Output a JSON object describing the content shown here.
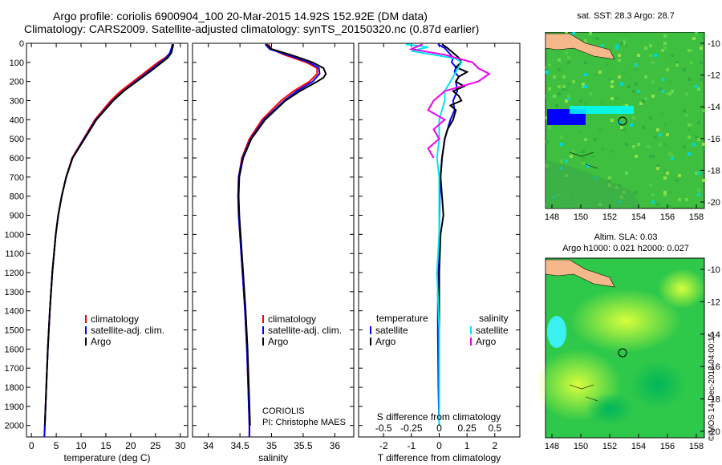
{
  "header": {
    "line1": "Argo profile: coriolis 6900904_100 20-Mar-2015 14.92S 152.92E (DM data)",
    "line2": "Climatology: CARS2009. Satellite-adjusted climatology: synTS_20150320.nc (0.87d earlier)"
  },
  "colors": {
    "climatology": "#ff0000",
    "satellite": "#0000ff",
    "argo": "#000000",
    "sat_salinity": "#00e5ee",
    "argo_salinity": "#ee00ee"
  },
  "chart_data": [
    {
      "type": "line",
      "id": "temperature",
      "xlabel": "temperature (deg C)",
      "ylabel": "",
      "xlim": [
        -1,
        31.5
      ],
      "ylim": [
        2060,
        0
      ],
      "xticks": [
        0,
        5,
        10,
        15,
        20,
        25,
        30
      ],
      "xtick_labels": [
        "0",
        "5",
        "10",
        "15",
        "20",
        "25",
        "30"
      ],
      "yticks": [
        0,
        100,
        200,
        300,
        400,
        500,
        600,
        700,
        800,
        900,
        1000,
        1100,
        1200,
        1300,
        1400,
        1500,
        1600,
        1700,
        1800,
        1900,
        2000
      ],
      "ytick_labels": [
        "0",
        "100",
        "200",
        "300",
        "400",
        "500",
        "600",
        "700",
        "800",
        "900",
        "1000",
        "1100",
        "1200",
        "1300",
        "1400",
        "1500",
        "1600",
        "1700",
        "1800",
        "1900",
        "2000"
      ],
      "legend": [
        "climatology",
        "satellite-adj. clim.",
        "Argo"
      ],
      "series": [
        {
          "name": "climatology",
          "color": "#ff0000",
          "depth": [
            5,
            20,
            50,
            75,
            100,
            150,
            200,
            250,
            300,
            400,
            500,
            600,
            700,
            800,
            900,
            1000,
            1200,
            1400,
            1600,
            1800,
            2000,
            2060
          ],
          "values": [
            28.5,
            28.4,
            28.0,
            27.0,
            25.5,
            23.0,
            20.5,
            18.0,
            16.0,
            12.8,
            10.5,
            8.2,
            7.0,
            6.1,
            5.4,
            4.9,
            4.2,
            3.7,
            3.3,
            3.0,
            2.7,
            2.6
          ]
        },
        {
          "name": "satellite-adj. clim.",
          "color": "#0000ff",
          "depth": [
            5,
            20,
            50,
            75,
            100,
            150,
            200,
            250,
            300,
            400,
            500,
            600,
            700,
            800,
            900,
            1000,
            1200,
            1400,
            1600,
            1800,
            2000,
            2060
          ],
          "values": [
            28.4,
            28.3,
            27.9,
            27.2,
            26.0,
            23.5,
            21.0,
            18.5,
            16.4,
            13.0,
            10.6,
            8.3,
            7.0,
            6.1,
            5.4,
            4.9,
            4.2,
            3.7,
            3.3,
            3.0,
            2.7,
            2.6
          ]
        },
        {
          "name": "Argo",
          "color": "#000000",
          "depth": [
            5,
            20,
            50,
            75,
            100,
            150,
            200,
            250,
            300,
            400,
            500,
            600,
            700,
            800,
            900,
            1000,
            1200,
            1400,
            1600,
            1800,
            2000
          ],
          "values": [
            28.6,
            28.5,
            28.2,
            27.5,
            26.3,
            23.8,
            21.2,
            18.6,
            16.5,
            13.1,
            10.7,
            8.3,
            7.0,
            6.1,
            5.4,
            4.9,
            4.2,
            3.7,
            3.3,
            3.0,
            2.7
          ]
        }
      ]
    },
    {
      "type": "line",
      "id": "salinity",
      "xlabel": "salinity",
      "xlim": [
        33.75,
        36.3
      ],
      "ylim": [
        2060,
        0
      ],
      "xticks": [
        34,
        34.5,
        35,
        35.5,
        36
      ],
      "xtick_labels": [
        "34",
        "34.5",
        "35",
        "35.5",
        "36"
      ],
      "legend": [
        "climatology",
        "satellite-adj. clim.",
        "Argo"
      ],
      "annotations": [
        "CORIOLIS",
        "PI: Christophe MAES"
      ],
      "series": [
        {
          "name": "climatology",
          "color": "#ff0000",
          "depth": [
            5,
            30,
            60,
            100,
            130,
            160,
            200,
            250,
            300,
            400,
            500,
            600,
            700,
            800,
            900,
            1000,
            1200,
            1400,
            1600,
            1800,
            2000,
            2060
          ],
          "values": [
            34.95,
            35.0,
            35.2,
            35.55,
            35.72,
            35.72,
            35.6,
            35.35,
            35.15,
            34.85,
            34.65,
            34.53,
            34.48,
            34.47,
            34.48,
            34.5,
            34.54,
            34.58,
            34.61,
            34.63,
            34.65,
            34.65
          ]
        },
        {
          "name": "satellite-adj. clim.",
          "color": "#0000ff",
          "depth": [
            5,
            30,
            60,
            100,
            130,
            160,
            200,
            250,
            300,
            400,
            500,
            600,
            700,
            800,
            900,
            1000,
            1200,
            1400,
            1600,
            1800,
            2000,
            2060
          ],
          "values": [
            34.9,
            34.97,
            35.25,
            35.6,
            35.75,
            35.76,
            35.65,
            35.4,
            35.2,
            34.88,
            34.67,
            34.54,
            34.48,
            34.47,
            34.48,
            34.5,
            34.54,
            34.58,
            34.61,
            34.63,
            34.65,
            34.65
          ]
        },
        {
          "name": "Argo",
          "color": "#000000",
          "depth": [
            5,
            30,
            60,
            100,
            130,
            160,
            180,
            200,
            250,
            300,
            400,
            500,
            600,
            700,
            800,
            900,
            1000,
            1200,
            1400,
            1600,
            1800,
            2000
          ],
          "values": [
            34.92,
            35.0,
            35.3,
            35.65,
            35.82,
            35.86,
            35.82,
            35.72,
            35.45,
            35.22,
            34.9,
            34.68,
            34.55,
            34.49,
            34.48,
            34.49,
            34.51,
            34.55,
            34.59,
            34.62,
            34.64,
            34.66
          ]
        }
      ]
    },
    {
      "type": "line",
      "id": "difference",
      "xlabel": "T difference from climatology",
      "xlabel_top": "S difference from climatology",
      "xlim": [
        -2.9,
        2.9
      ],
      "ylim": [
        2060,
        0
      ],
      "xticks": [
        -2,
        -1,
        0,
        1,
        2
      ],
      "xtick_labels": [
        "-2",
        "-1",
        "0",
        "1",
        "2"
      ],
      "s_ticks": [
        -0.5,
        -0.25,
        0,
        0.25,
        0.5
      ],
      "s_tick_labels": [
        "-0.5",
        "-0.25",
        "0",
        "0.25",
        "0.5"
      ],
      "legend_temperature_title": "temperature",
      "legend_salinity_title": "salinity",
      "legend_temperature": [
        "satellite",
        "Argo"
      ],
      "legend_salinity": [
        "satellite",
        "Argo"
      ],
      "series": [
        {
          "name": "T satellite",
          "color": "#0000ff",
          "depth": [
            5,
            25,
            50,
            75,
            100,
            125,
            150,
            175,
            200,
            250,
            300,
            350,
            400,
            450,
            500,
            600,
            700,
            800,
            1000,
            1200,
            1500,
            1800,
            2000
          ],
          "values": [
            -0.05,
            0.2,
            0.35,
            0.5,
            0.45,
            0.6,
            0.55,
            0.7,
            0.6,
            0.65,
            0.5,
            0.55,
            0.4,
            0.3,
            0.2,
            0.1,
            0.05,
            0.02,
            0.0,
            -0.05,
            -0.05,
            -0.03,
            0.0
          ]
        },
        {
          "name": "T Argo",
          "color": "#000000",
          "depth": [
            5,
            25,
            50,
            75,
            100,
            125,
            150,
            175,
            200,
            225,
            250,
            275,
            300,
            325,
            350,
            400,
            450,
            500,
            600,
            700,
            800,
            900,
            1000,
            1200,
            1500,
            1800,
            2000
          ],
          "values": [
            0.1,
            0.3,
            0.5,
            0.7,
            0.8,
            0.6,
            1.0,
            0.7,
            0.6,
            0.9,
            0.5,
            0.7,
            0.8,
            0.4,
            0.6,
            0.5,
            0.3,
            0.2,
            0.1,
            0.05,
            0.1,
            0.15,
            0.05,
            0.0,
            0.0,
            0.0,
            0.0
          ]
        },
        {
          "name": "S satellite",
          "color": "#00e5ee",
          "depth": [
            5,
            20,
            40,
            60,
            80,
            100,
            150,
            200,
            250,
            300,
            400,
            500,
            600,
            700,
            800,
            1000,
            1200,
            1500,
            1800,
            2000
          ],
          "values": [
            -0.3,
            -0.1,
            -0.25,
            -0.05,
            0.15,
            0.2,
            0.15,
            0.1,
            0.05,
            0.05,
            0.0,
            0.0,
            -0.02,
            0.0,
            0.0,
            0.0,
            -0.02,
            0.0,
            0.0,
            0.0
          ]
        },
        {
          "name": "S Argo",
          "color": "#ee00ee",
          "depth": [
            5,
            30,
            60,
            100,
            130,
            160,
            200,
            250,
            300,
            350,
            400,
            450,
            500,
            550,
            600
          ],
          "values": [
            -0.15,
            -0.25,
            0.05,
            0.3,
            0.35,
            0.45,
            0.35,
            0.05,
            -0.05,
            -0.1,
            0.05,
            -0.05,
            0.0,
            -0.1,
            -0.05
          ]
        }
      ]
    }
  ],
  "maps": [
    {
      "id": "sst",
      "title1": "sat. SST: 28.3 Argo: 28.7",
      "lat_labels": [
        "-10",
        "-12",
        "-14",
        "-16",
        "-18",
        "-20"
      ],
      "lon_labels": [
        "148",
        "150",
        "152",
        "154",
        "156",
        "158"
      ]
    },
    {
      "id": "sla",
      "title1": "Altim. SLA: 0.03",
      "title2": "Argo h1000: 0.021 h2000: 0.027",
      "lat_labels": [
        "-10",
        "-12",
        "-14",
        "-16",
        "-18",
        "-20"
      ],
      "lon_labels": [
        "148",
        "150",
        "152",
        "154",
        "156",
        "158"
      ]
    }
  ],
  "footer": {
    "watermark": "©IMOS 14-Dec-2018 04:00:15"
  }
}
